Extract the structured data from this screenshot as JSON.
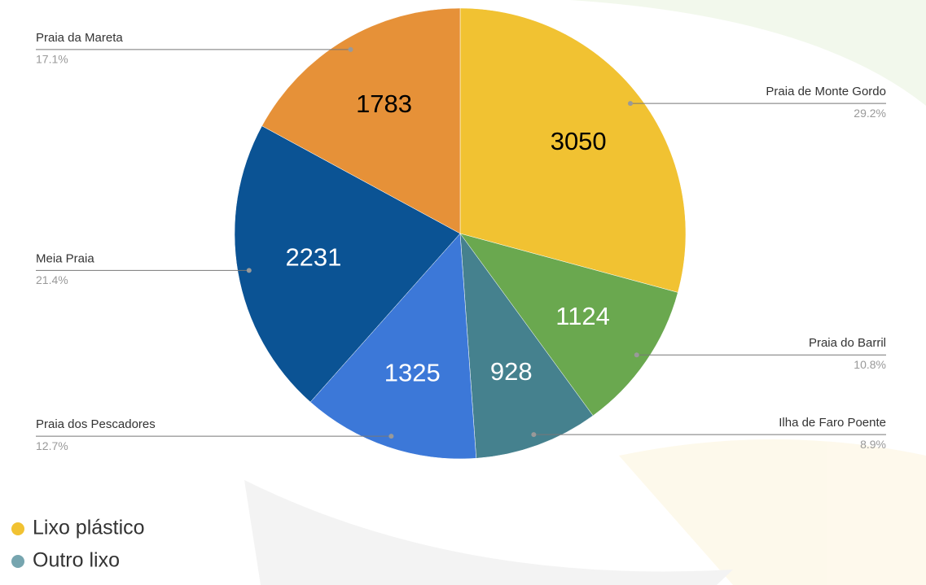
{
  "chart_data": {
    "type": "pie",
    "categories": [
      "Praia de Monte Gordo",
      "Praia do Barril",
      "Ilha de Faro Poente",
      "Praia dos Pescadores",
      "Meia Praia",
      "Praia da Mareta"
    ],
    "values": [
      3050,
      1124,
      928,
      1325,
      2231,
      1783
    ],
    "percent_labels": [
      "29.2%",
      "10.8%",
      "8.9%",
      "12.7%",
      "21.4%",
      "17.1%"
    ],
    "colors": [
      "#f1c232",
      "#6aa84f",
      "#45818e",
      "#3c78d8",
      "#0b5394",
      "#e69138"
    ],
    "legend": [
      {
        "name": "Lixo plástico",
        "color": "#f1c232"
      },
      {
        "name": "Outro lixo",
        "color": "#76a5af"
      }
    ]
  }
}
